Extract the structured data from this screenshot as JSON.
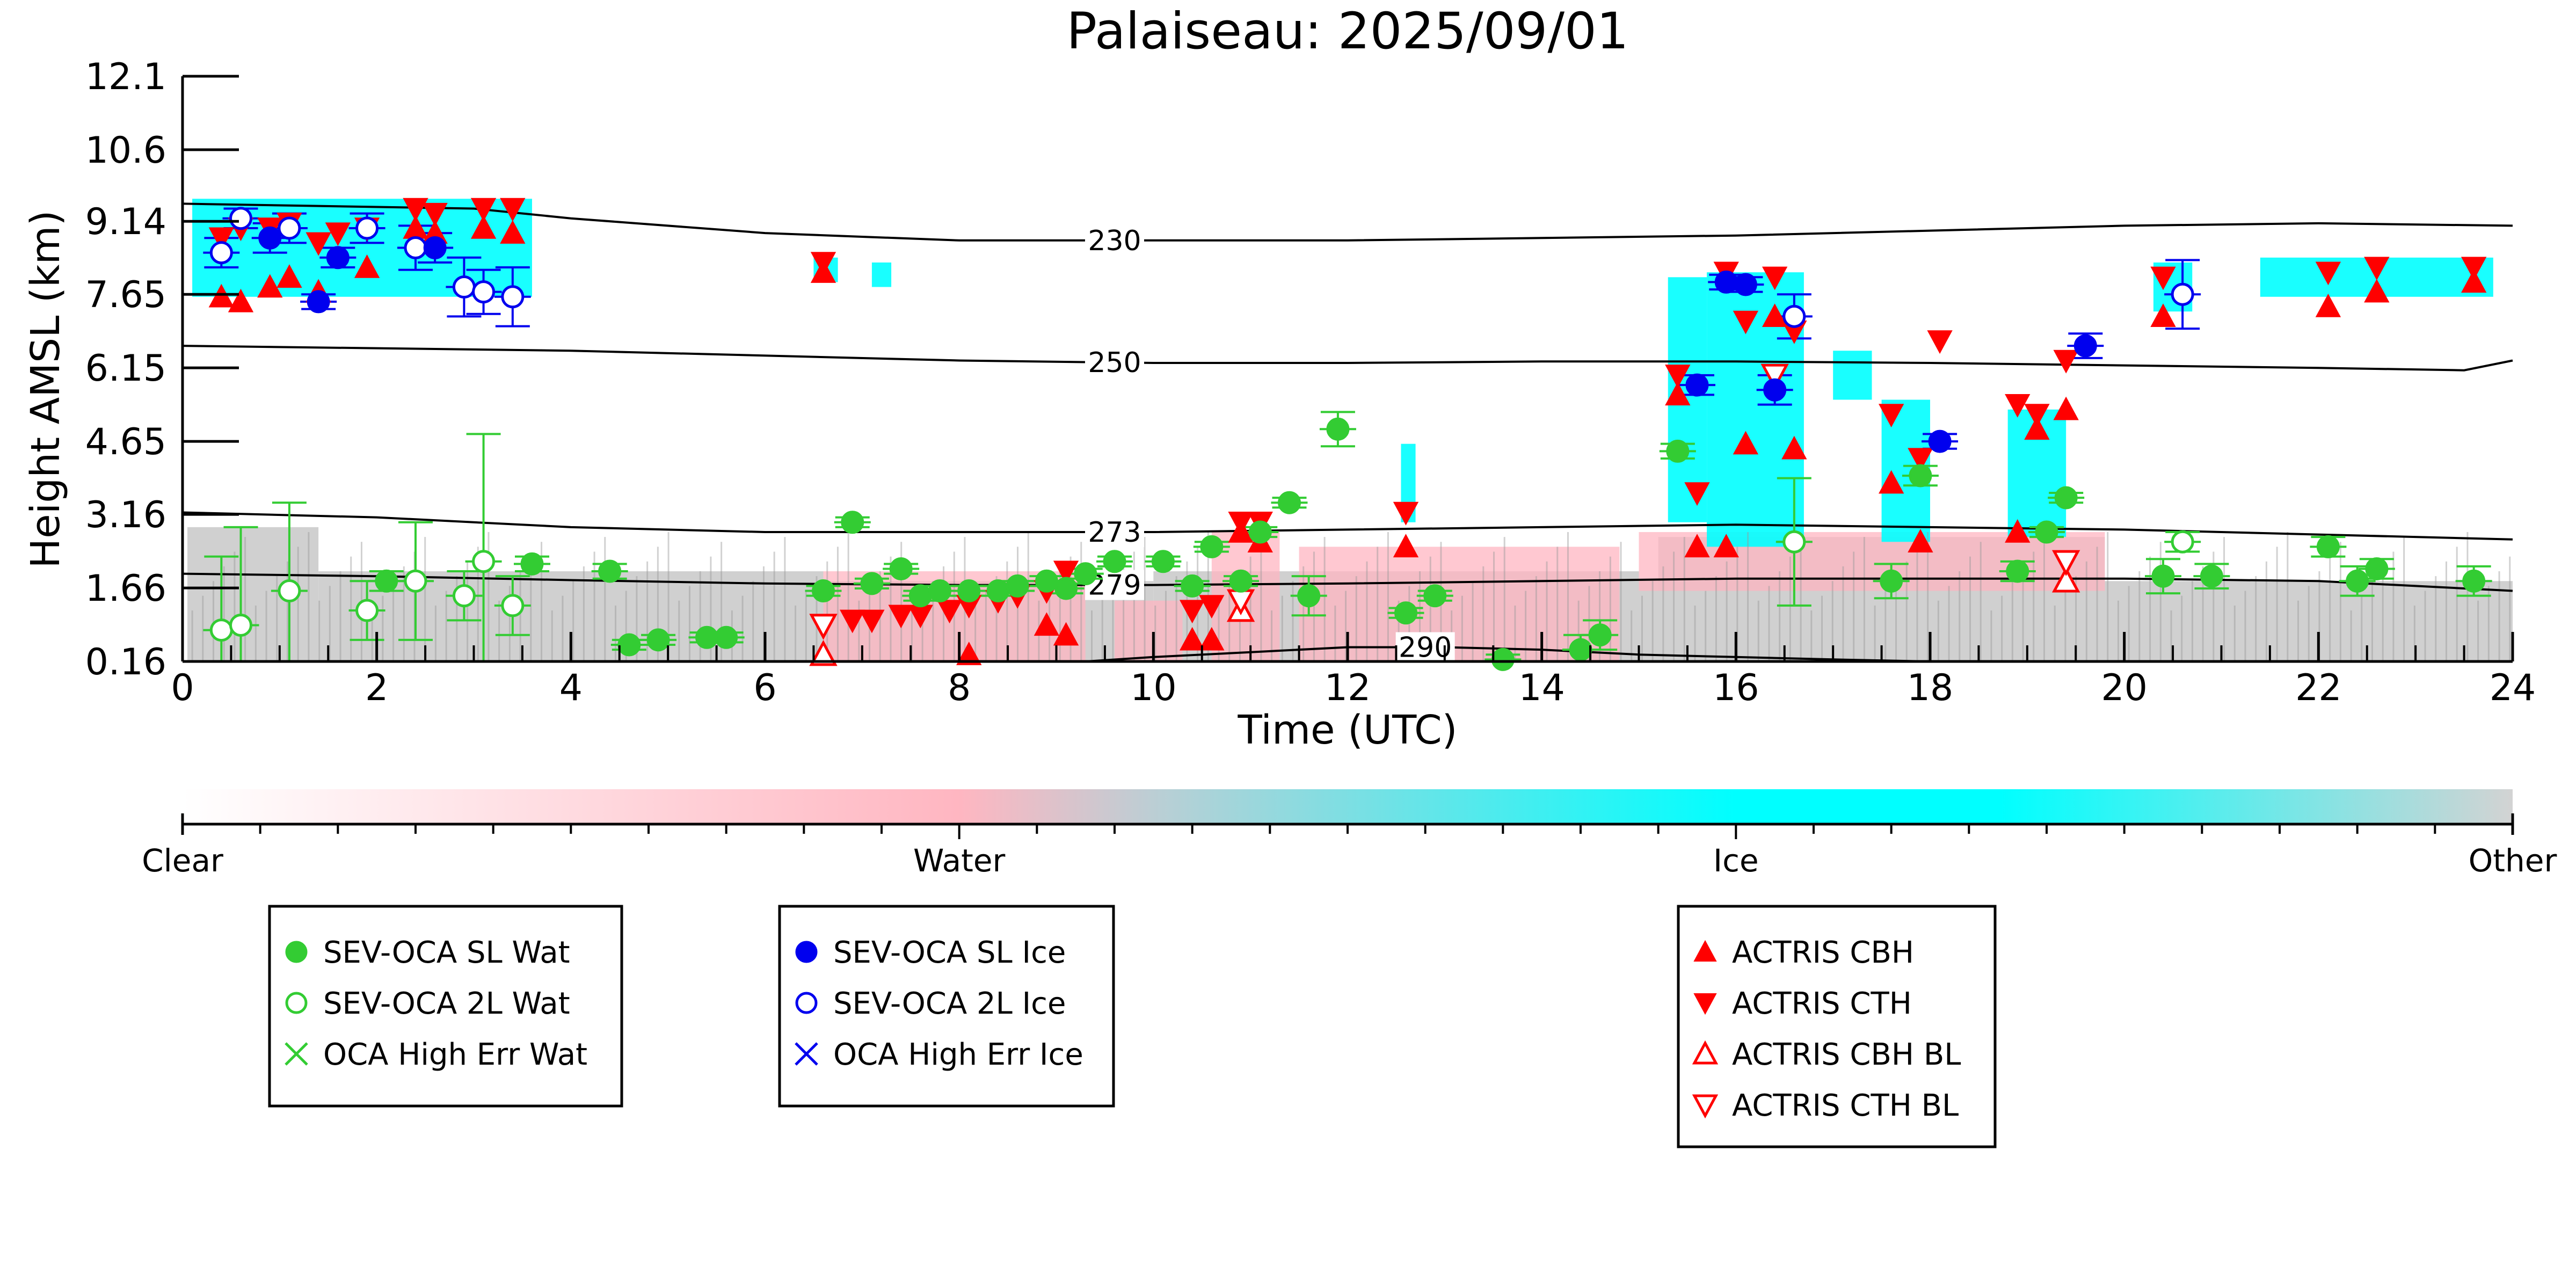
{
  "chart_data": {
    "type": "scatter",
    "title": "Palaiseau: 2025/09/01",
    "xlabel": "Time (UTC)",
    "ylabel": "Height AMSL (km)",
    "xlim": [
      0,
      24
    ],
    "ylim": [
      0.16,
      12.1
    ],
    "x_ticks": [
      0,
      2,
      4,
      6,
      8,
      10,
      12,
      14,
      16,
      18,
      20,
      22,
      24
    ],
    "y_ticks": [
      0.16,
      1.66,
      3.16,
      4.65,
      6.15,
      7.65,
      9.14,
      10.6,
      12.1
    ],
    "y_tick_labels": [
      "0.16",
      "1.66",
      "3.16",
      "4.65",
      "6.15",
      "7.65",
      "9.14",
      "10.6",
      "12.1"
    ],
    "colorbar": {
      "labels": [
        "Clear",
        "Water",
        "Ice",
        "Other"
      ],
      "colors": [
        "#ffffff",
        "#ffb6c1",
        "#00ffff",
        "#d3d3d3"
      ]
    },
    "colors": {
      "wat": "#33cc33",
      "ice": "#0000ee",
      "actris": "#ff0000",
      "background_ice": "#00ffff",
      "background_water": "#ffb6c1",
      "background_other": "#c8c8c8"
    },
    "isotherms": [
      {
        "label": "230",
        "label_x": 9.6,
        "points": [
          [
            0,
            9.5
          ],
          [
            3,
            9.4
          ],
          [
            4,
            9.2
          ],
          [
            6,
            8.9
          ],
          [
            8,
            8.75
          ],
          [
            10,
            8.75
          ],
          [
            12,
            8.75
          ],
          [
            14,
            8.8
          ],
          [
            16,
            8.85
          ],
          [
            18,
            8.95
          ],
          [
            20,
            9.05
          ],
          [
            22,
            9.1
          ],
          [
            24,
            9.05
          ]
        ]
      },
      {
        "label": "250",
        "label_x": 9.6,
        "points": [
          [
            0,
            6.6
          ],
          [
            4,
            6.5
          ],
          [
            8,
            6.3
          ],
          [
            10,
            6.25
          ],
          [
            12,
            6.25
          ],
          [
            14,
            6.28
          ],
          [
            16,
            6.28
          ],
          [
            18,
            6.25
          ],
          [
            20,
            6.2
          ],
          [
            22,
            6.15
          ],
          [
            23.5,
            6.1
          ],
          [
            24,
            6.3
          ]
        ]
      },
      {
        "label": "273",
        "label_x": 9.6,
        "points": [
          [
            0,
            3.2
          ],
          [
            2,
            3.1
          ],
          [
            4,
            2.9
          ],
          [
            6,
            2.8
          ],
          [
            8,
            2.8
          ],
          [
            10,
            2.8
          ],
          [
            12,
            2.85
          ],
          [
            14,
            2.9
          ],
          [
            16,
            2.95
          ],
          [
            18,
            2.9
          ],
          [
            20,
            2.85
          ],
          [
            22,
            2.75
          ],
          [
            24,
            2.65
          ]
        ]
      },
      {
        "label": "279",
        "label_x": 9.6,
        "points": [
          [
            0,
            1.95
          ],
          [
            2,
            1.9
          ],
          [
            4,
            1.82
          ],
          [
            6,
            1.75
          ],
          [
            8,
            1.72
          ],
          [
            10,
            1.72
          ],
          [
            12,
            1.75
          ],
          [
            14,
            1.8
          ],
          [
            16,
            1.85
          ],
          [
            18,
            1.85
          ],
          [
            20,
            1.85
          ],
          [
            22,
            1.8
          ],
          [
            24,
            1.6
          ]
        ]
      },
      {
        "label": "290",
        "label_x": 12.8,
        "points": [
          [
            9.3,
            0.16
          ],
          [
            10,
            0.25
          ],
          [
            11,
            0.35
          ],
          [
            12,
            0.45
          ],
          [
            13,
            0.45
          ],
          [
            14,
            0.4
          ],
          [
            15,
            0.3
          ],
          [
            16,
            0.25
          ],
          [
            17,
            0.2
          ],
          [
            18,
            0.16
          ]
        ]
      }
    ],
    "series": [
      {
        "name": "SEV-OCA SL Wat",
        "x": [
          2.1,
          3.6,
          4.4,
          4.6,
          4.9,
          5.4,
          5.6,
          6.6,
          6.9,
          7.1,
          7.4,
          7.6,
          7.8,
          8.1,
          8.4,
          8.6,
          8.9,
          9.1,
          9.3,
          9.6,
          10.1,
          10.4,
          10.6,
          10.9,
          11.1,
          11.4,
          11.6,
          11.9,
          12.6,
          12.9,
          13.6,
          14.4,
          14.6,
          15.4,
          17.6,
          17.9,
          18.9,
          19.2,
          19.4,
          20.4,
          20.9,
          22.1,
          22.4,
          22.6,
          23.6
        ],
        "y": [
          1.8,
          2.15,
          2.0,
          0.5,
          0.6,
          0.65,
          0.65,
          1.6,
          3.0,
          1.75,
          2.05,
          1.5,
          1.6,
          1.6,
          1.6,
          1.7,
          1.8,
          1.65,
          1.95,
          2.2,
          2.2,
          1.7,
          2.5,
          1.8,
          2.8,
          3.4,
          1.5,
          4.9,
          1.15,
          1.5,
          0.2,
          0.4,
          0.7,
          4.45,
          1.8,
          3.95,
          2.0,
          2.8,
          3.5,
          1.9,
          1.9,
          2.5,
          1.8,
          2.05,
          1.8
        ],
        "err": [
          0.2,
          0.15,
          0.15,
          0.1,
          0.1,
          0.1,
          0.1,
          0.1,
          0.1,
          0.1,
          0.1,
          0.1,
          0.1,
          0.1,
          0.1,
          0.1,
          0.1,
          0.1,
          0.1,
          0.1,
          0.1,
          0.1,
          0.1,
          0.1,
          0.1,
          0.1,
          0.4,
          0.35,
          0.1,
          0.1,
          0.1,
          0.3,
          0.3,
          0.15,
          0.35,
          0.2,
          0.2,
          0.1,
          0.1,
          0.35,
          0.25,
          0.2,
          0.3,
          0.2,
          0.3
        ]
      },
      {
        "name": "SEV-OCA 2L Wat",
        "x": [
          0.4,
          0.6,
          1.1,
          1.9,
          2.4,
          2.9,
          3.1,
          3.4,
          16.6,
          20.6
        ],
        "y": [
          0.8,
          0.9,
          1.6,
          1.2,
          1.8,
          1.5,
          2.2,
          1.3,
          2.6,
          2.6
        ],
        "err": [
          1.5,
          2.0,
          1.8,
          0.6,
          1.2,
          0.5,
          2.6,
          0.6,
          1.3,
          0.2
        ]
      },
      {
        "name": "OCA High Err Wat",
        "x": [],
        "y": []
      },
      {
        "name": "SEV-OCA SL Ice",
        "x": [
          0.9,
          1.4,
          1.6,
          2.6,
          15.6,
          15.9,
          16.1,
          16.4,
          18.1,
          19.6
        ],
        "y": [
          8.8,
          7.5,
          8.4,
          8.6,
          5.8,
          7.9,
          7.85,
          5.7,
          4.65,
          6.6
        ],
        "err": [
          0.3,
          0.15,
          0.2,
          0.3,
          0.2,
          0.15,
          0.15,
          0.3,
          0.15,
          0.25
        ]
      },
      {
        "name": "SEV-OCA 2L Ice",
        "x": [
          0.4,
          0.6,
          1.1,
          1.9,
          2.4,
          2.9,
          3.1,
          3.4,
          16.6,
          20.6
        ],
        "y": [
          8.5,
          9.2,
          9.0,
          9.0,
          8.6,
          7.8,
          7.7,
          7.6,
          7.2,
          7.65
        ],
        "err": [
          0.3,
          0.2,
          0.3,
          0.3,
          0.45,
          0.6,
          0.45,
          0.6,
          0.45,
          0.7
        ]
      },
      {
        "name": "OCA High Err Ice",
        "x": [],
        "y": []
      },
      {
        "name": "ACTRIS CBH",
        "x": [
          0.4,
          0.6,
          0.9,
          1.1,
          1.4,
          1.9,
          2.4,
          2.6,
          3.1,
          3.4,
          6.6,
          8.1,
          8.9,
          9.1,
          10.4,
          10.6,
          10.9,
          11.1,
          12.6,
          15.4,
          15.6,
          15.9,
          16.1,
          16.4,
          16.6,
          17.6,
          17.9,
          18.9,
          19.1,
          19.4,
          20.4,
          22.1,
          22.6,
          23.6
        ],
        "y": [
          7.6,
          7.5,
          7.8,
          8.0,
          7.7,
          8.2,
          9.0,
          8.9,
          9.0,
          8.9,
          8.1,
          0.3,
          0.9,
          0.7,
          0.6,
          0.6,
          2.8,
          2.6,
          2.5,
          5.6,
          2.5,
          2.5,
          4.6,
          7.2,
          4.5,
          3.8,
          2.6,
          2.8,
          4.9,
          5.3,
          7.2,
          7.4,
          7.7,
          7.9
        ]
      },
      {
        "name": "ACTRIS CTH",
        "x": [
          0.4,
          0.6,
          0.9,
          1.1,
          1.4,
          1.6,
          1.9,
          2.4,
          2.6,
          3.1,
          3.4,
          6.6,
          6.9,
          7.1,
          7.4,
          7.6,
          7.9,
          8.1,
          8.4,
          8.6,
          8.9,
          9.1,
          10.4,
          10.6,
          10.9,
          11.1,
          12.6,
          15.4,
          15.6,
          15.9,
          16.1,
          16.4,
          16.6,
          17.6,
          17.9,
          18.1,
          18.9,
          19.1,
          19.4,
          20.4,
          22.1,
          22.6,
          23.6
        ],
        "y": [
          8.8,
          9.0,
          9.0,
          9.1,
          8.7,
          8.9,
          9.0,
          9.4,
          9.3,
          9.4,
          9.4,
          8.3,
          1.0,
          1.0,
          1.1,
          1.1,
          1.2,
          1.3,
          1.4,
          1.5,
          1.6,
          2.0,
          1.2,
          1.3,
          3.0,
          3.0,
          3.2,
          6.0,
          3.6,
          8.1,
          7.1,
          8.0,
          6.9,
          5.2,
          4.3,
          6.7,
          5.4,
          5.2,
          6.3,
          8.0,
          8.1,
          8.2,
          8.2
        ]
      },
      {
        "name": "ACTRIS CBH BL",
        "x": [
          6.6,
          10.9,
          19.4
        ],
        "y": [
          0.3,
          1.2,
          1.8
        ]
      },
      {
        "name": "ACTRIS CTH BL",
        "x": [
          6.6,
          10.9,
          16.4,
          19.4
        ],
        "y": [
          0.9,
          1.4,
          6.0,
          2.2
        ]
      }
    ],
    "legends": [
      {
        "entries": [
          "SEV-OCA SL Wat",
          "SEV-OCA 2L Wat",
          "OCA High Err Wat"
        ]
      },
      {
        "entries": [
          "SEV-OCA SL Ice",
          "SEV-OCA 2L Ice",
          "OCA High Err Ice"
        ]
      },
      {
        "entries": [
          "ACTRIS CBH",
          "ACTRIS CTH",
          "ACTRIS CBH BL",
          "ACTRIS CTH BL"
        ]
      }
    ],
    "background": {
      "ice_regions": [
        {
          "x": [
            0.1,
            3.6
          ],
          "y": [
            7.6,
            9.6
          ]
        },
        {
          "x": [
            6.5,
            6.75
          ],
          "y": [
            7.9,
            8.4
          ]
        },
        {
          "x": [
            7.1,
            7.3
          ],
          "y": [
            7.8,
            8.3
          ]
        },
        {
          "x": [
            12.55,
            12.7
          ],
          "y": [
            3.0,
            4.6
          ]
        },
        {
          "x": [
            15.3,
            15.7
          ],
          "y": [
            3.0,
            8.0
          ]
        },
        {
          "x": [
            15.7,
            16.7
          ],
          "y": [
            2.5,
            8.1
          ]
        },
        {
          "x": [
            17.0,
            17.4
          ],
          "y": [
            5.5,
            6.5
          ]
        },
        {
          "x": [
            17.5,
            18.0
          ],
          "y": [
            2.6,
            5.5
          ]
        },
        {
          "x": [
            18.8,
            19.4
          ],
          "y": [
            2.7,
            5.3
          ]
        },
        {
          "x": [
            20.3,
            20.7
          ],
          "y": [
            7.3,
            8.3
          ]
        },
        {
          "x": [
            21.4,
            23.8
          ],
          "y": [
            7.6,
            8.4
          ]
        }
      ],
      "water_regions": [
        {
          "x": [
            6.6,
            9.3
          ],
          "y": [
            0.16,
            2.0
          ]
        },
        {
          "x": [
            9.6,
            10.3
          ],
          "y": [
            0.16,
            1.4
          ]
        },
        {
          "x": [
            10.6,
            11.3
          ],
          "y": [
            0.16,
            2.8
          ]
        },
        {
          "x": [
            11.5,
            14.8
          ],
          "y": [
            0.16,
            2.5
          ]
        },
        {
          "x": [
            15.0,
            19.8
          ],
          "y": [
            1.6,
            2.8
          ]
        }
      ],
      "other_regions": [
        {
          "x": [
            0.05,
            1.4
          ],
          "y": [
            0.16,
            2.9
          ]
        },
        {
          "x": [
            1.4,
            6.6
          ],
          "y": [
            0.16,
            2.0
          ]
        },
        {
          "x": [
            6.6,
            10.0
          ],
          "y": [
            0.16,
            1.8
          ]
        },
        {
          "x": [
            10.0,
            15.0
          ],
          "y": [
            0.16,
            2.0
          ]
        },
        {
          "x": [
            15.0,
            24.0
          ],
          "y": [
            0.16,
            1.8
          ]
        },
        {
          "x": [
            15.2,
            19.8
          ],
          "y": [
            1.6,
            2.7
          ]
        }
      ]
    }
  }
}
